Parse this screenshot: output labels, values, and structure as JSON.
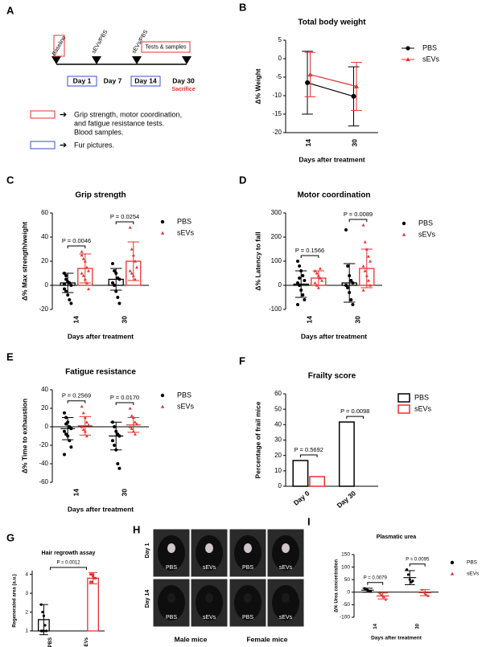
{
  "timeline": {
    "panel": "A",
    "events": [
      "Baseline",
      "sEVs/PBS",
      "sEVs/PBS",
      "Tests & samples"
    ],
    "days": [
      "Day 1",
      "Day 7",
      "Day 14",
      "Day 30"
    ],
    "sacrifice": "Sacrifice",
    "red_legend": [
      "Grip strength, motor coordination,",
      "and fatigue resistance tests.",
      "Blood samples."
    ],
    "blue_legend": "Fur pictures."
  },
  "photos": {
    "panel": "H",
    "rows": [
      "Day 1",
      "Day 14"
    ],
    "labels": [
      "PBS",
      "sEVs",
      "PBS",
      "sEVs",
      "PBS",
      "sEVs",
      "PBS",
      "sEVs"
    ],
    "groups": [
      "Male mice",
      "Female mice"
    ]
  },
  "chart_data": [
    {
      "panel": "B",
      "type": "line",
      "title": "Total body weight",
      "xlabel": "Days after treatment",
      "ylabel": "Δ% Weight",
      "categories": [
        "14",
        "30"
      ],
      "ylim": [
        -20,
        5
      ],
      "yticks": [
        -20,
        -15,
        -10,
        -5,
        0,
        5
      ],
      "legend": "right",
      "series": [
        {
          "name": "PBS",
          "color": "#000000",
          "marker": "circle",
          "values": [
            -6.5,
            -10.2
          ],
          "errors": [
            8.5,
            8
          ]
        },
        {
          "name": "sEVs",
          "color": "#e8302f",
          "marker": "triangle",
          "values": [
            -4.3,
            -7.5
          ],
          "errors": [
            6,
            6.5
          ]
        }
      ]
    },
    {
      "panel": "C",
      "type": "dot",
      "bars": true,
      "title": "Grip strength",
      "xlabel": "Days after treatment",
      "ylabel": "Δ% Max strength/weight",
      "categories": [
        "14",
        "30"
      ],
      "ylim": [
        -20,
        60
      ],
      "yticks": [
        -20,
        0,
        20,
        40,
        60
      ],
      "legend": "right",
      "annotations": [
        "P = 0.0046",
        "P = 0.0254"
      ],
      "series": [
        {
          "name": "PBS",
          "color": "#000000",
          "marker": "circle",
          "values": [
            2,
            5
          ],
          "errors": [
            8,
            9
          ],
          "points": [
            [
              10,
              5,
              3,
              2,
              0,
              -3,
              -5,
              -8,
              -12,
              -15,
              1,
              8
            ],
            [
              18,
              12,
              10,
              6,
              5,
              2,
              0,
              -5,
              -10,
              -15
            ]
          ]
        },
        {
          "name": "sEVs",
          "color": "#e8302f",
          "marker": "triangle",
          "values": [
            14,
            20
          ],
          "errors": [
            12,
            16
          ],
          "points": [
            [
              25,
              22,
              20,
              15,
              12,
              10,
              8,
              5,
              2,
              -3,
              28
            ],
            [
              48,
              30,
              25,
              20,
              15,
              12,
              10,
              8,
              5
            ]
          ]
        }
      ]
    },
    {
      "panel": "D",
      "type": "dot",
      "bars": true,
      "title": "Motor coordination",
      "xlabel": "Days after treatment",
      "ylabel": "Δ% Latency to fall",
      "categories": [
        "14",
        "30"
      ],
      "ylim": [
        -100,
        300
      ],
      "yticks": [
        -100,
        0,
        100,
        200,
        300
      ],
      "legend": "right",
      "annotations": [
        "P = 0.1566",
        "P = 0.0089"
      ],
      "series": [
        {
          "name": "PBS",
          "color": "#000000",
          "marker": "circle",
          "values": [
            5,
            10
          ],
          "errors": [
            55,
            80
          ],
          "points": [
            [
              100,
              80,
              60,
              40,
              20,
              10,
              0,
              -20,
              -40,
              -60,
              -80,
              30
            ],
            [
              230,
              80,
              40,
              20,
              10,
              0,
              -10,
              -30,
              -60,
              -80
            ]
          ]
        },
        {
          "name": "sEVs",
          "color": "#e8302f",
          "marker": "triangle",
          "values": [
            30,
            70
          ],
          "errors": [
            30,
            80
          ],
          "points": [
            [
              60,
              50,
              40,
              30,
              20,
              10,
              0,
              -10,
              70
            ],
            [
              250,
              180,
              150,
              120,
              100,
              80,
              60,
              40,
              20,
              0,
              -20
            ]
          ]
        }
      ]
    },
    {
      "panel": "E",
      "type": "dot",
      "bars": false,
      "title": "Fatigue resistance",
      "xlabel": "Days after treatment",
      "ylabel": "Δ% Time to exhaustion",
      "categories": [
        "14",
        "30"
      ],
      "ylim": [
        -60,
        40
      ],
      "yticks": [
        -60,
        -40,
        -20,
        0,
        20,
        40
      ],
      "legend": "right",
      "annotations": [
        "P = 0.2569",
        "P = 0.0170"
      ],
      "series": [
        {
          "name": "PBS",
          "color": "#000000",
          "marker": "circle",
          "values": [
            -2,
            -10
          ],
          "errors": [
            12,
            15
          ],
          "points": [
            [
              15,
              10,
              5,
              0,
              -2,
              -5,
              -8,
              -10,
              -15,
              -22,
              -30,
              3
            ],
            [
              5,
              0,
              -5,
              -8,
              -10,
              -15,
              -20,
              -25,
              -40,
              -45
            ]
          ]
        },
        {
          "name": "sEVs",
          "color": "#e8302f",
          "marker": "triangle",
          "values": [
            1,
            2
          ],
          "errors": [
            10,
            8
          ],
          "points": [
            [
              22,
              15,
              10,
              5,
              2,
              0,
              -3,
              -5,
              -10
            ],
            [
              20,
              12,
              10,
              5,
              3,
              0,
              -2,
              -5,
              -8
            ]
          ]
        }
      ]
    },
    {
      "panel": "F",
      "type": "bar",
      "title": "Frailty score",
      "ylabel": "Percentage of frail mice",
      "categories": [
        "Day 0",
        "Day 30"
      ],
      "ylim": [
        0,
        60
      ],
      "yticks": [
        0,
        10,
        20,
        30,
        40,
        50,
        60
      ],
      "legend": "right",
      "annotations": [
        "P = 0.5692",
        "P = 0.0098"
      ],
      "series": [
        {
          "name": "PBS",
          "color": "#000000",
          "values": [
            16.7,
            41.7
          ]
        },
        {
          "name": "sEVs",
          "color": "#e8302f",
          "values": [
            6.25,
            0
          ]
        }
      ]
    },
    {
      "panel": "G",
      "type": "dot",
      "bars": true,
      "title": "Hair regrowth assay",
      "ylabel": "Regenerated area (a.u.)",
      "categories": [
        "PBS",
        "sEVs"
      ],
      "ylim": [
        1,
        4.2
      ],
      "yticks": [
        1,
        2,
        3,
        4
      ],
      "annotations": [
        "P = 0.0012"
      ],
      "series": [
        {
          "color": "#000000",
          "marker": "circle",
          "values": [
            1.6,
            null
          ],
          "errors": [
            0.8,
            null
          ],
          "points": [
            [
              2.4,
              2,
              1.8,
              1.3,
              1,
              1,
              1,
              1
            ],
            []
          ]
        },
        {
          "color": "#e8302f",
          "marker": "circle",
          "values": [
            null,
            3.8
          ],
          "errors": [
            null,
            0.3
          ],
          "points": [
            [],
            [
              4,
              4,
              3.9,
              3.8,
              3.8,
              3.6,
              3.6,
              4
            ]
          ]
        }
      ]
    },
    {
      "panel": "I",
      "type": "dot",
      "bars": false,
      "title": "Plasmatic urea",
      "xlabel": "Days after treatment",
      "ylabel": "Δ% Urea concentration",
      "categories": [
        "14",
        "30"
      ],
      "ylim": [
        -100,
        150
      ],
      "yticks": [
        -100,
        -50,
        0,
        50,
        100,
        150
      ],
      "legend": "right",
      "annotations": [
        "P = 0.0079",
        "P = 0.0095"
      ],
      "series": [
        {
          "name": "PBS",
          "color": "#000000",
          "marker": "circle",
          "values": [
            8,
            58
          ],
          "errors": [
            8,
            28
          ],
          "points": [
            [
              15,
              10,
              8,
              5,
              3
            ],
            [
              90,
              70,
              50,
              40,
              45
            ]
          ]
        },
        {
          "name": "sEVs",
          "color": "#e8302f",
          "marker": "triangle",
          "values": [
            -15,
            -2
          ],
          "errors": [
            12,
            12
          ],
          "points": [
            [
              -5,
              -10,
              -15,
              -20,
              -30
            ],
            [
              10,
              0,
              -5,
              -10,
              -15
            ]
          ]
        }
      ]
    }
  ]
}
